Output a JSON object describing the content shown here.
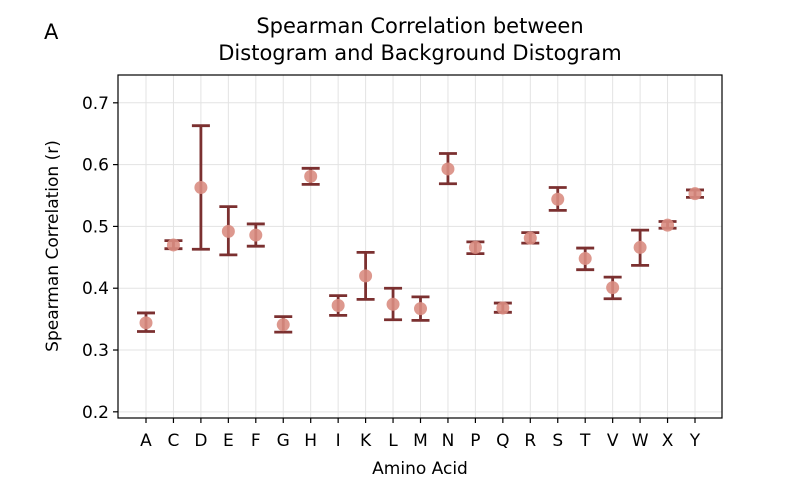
{
  "panel_label": "A",
  "chart_data": {
    "type": "scatter",
    "title_line1": "Spearman Correlation between",
    "title_line2": "Distogram and Background Distogram",
    "xlabel": "Amino Acid",
    "ylabel": "Spearman Correlation (r)",
    "ylim": [
      0.19,
      0.745
    ],
    "yticks": [
      0.2,
      0.3,
      0.4,
      0.5,
      0.6,
      0.7
    ],
    "ytick_labels": [
      "0.2",
      "0.3",
      "0.4",
      "0.5",
      "0.6",
      "0.7"
    ],
    "grid": true,
    "categories": [
      "A",
      "C",
      "D",
      "E",
      "F",
      "G",
      "H",
      "I",
      "K",
      "L",
      "M",
      "N",
      "P",
      "Q",
      "R",
      "S",
      "T",
      "V",
      "W",
      "X",
      "Y"
    ],
    "values": [
      0.344,
      0.47,
      0.563,
      0.492,
      0.486,
      0.341,
      0.581,
      0.372,
      0.42,
      0.374,
      0.367,
      0.593,
      0.466,
      0.368,
      0.481,
      0.544,
      0.448,
      0.401,
      0.466,
      0.502,
      0.553
    ],
    "err_low": [
      0.33,
      0.464,
      0.463,
      0.454,
      0.468,
      0.329,
      0.568,
      0.356,
      0.382,
      0.349,
      0.348,
      0.569,
      0.456,
      0.361,
      0.473,
      0.526,
      0.43,
      0.383,
      0.437,
      0.497,
      0.547
    ],
    "err_high": [
      0.36,
      0.477,
      0.663,
      0.532,
      0.504,
      0.354,
      0.594,
      0.388,
      0.458,
      0.4,
      0.386,
      0.618,
      0.475,
      0.376,
      0.49,
      0.563,
      0.465,
      0.418,
      0.494,
      0.508,
      0.559
    ],
    "colors": {
      "marker": "#d98d82",
      "errorbar": "#7b3030",
      "grid": "#e3e3e3",
      "axis": "#000000"
    }
  }
}
